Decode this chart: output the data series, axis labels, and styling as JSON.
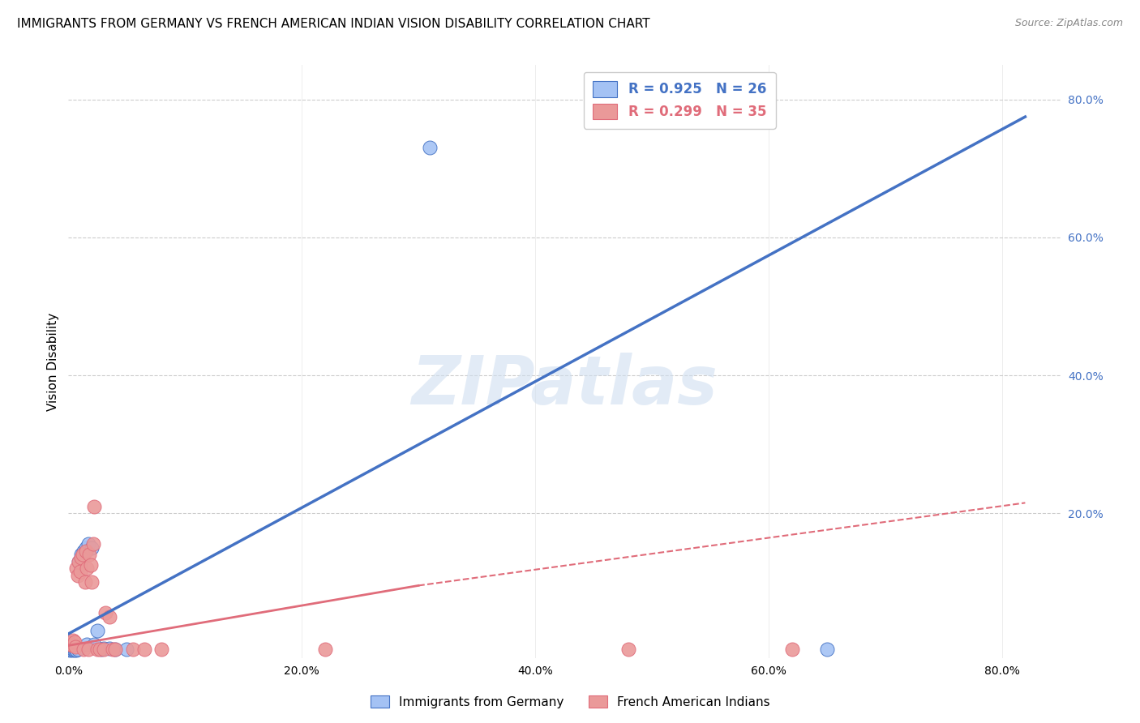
{
  "title": "IMMIGRANTS FROM GERMANY VS FRENCH AMERICAN INDIAN VISION DISABILITY CORRELATION CHART",
  "source": "Source: ZipAtlas.com",
  "ylabel": "Vision Disability",
  "xlim": [
    0.0,
    0.85
  ],
  "ylim": [
    -0.01,
    0.85
  ],
  "legend_labels_bottom": [
    "Immigrants from Germany",
    "French American Indians"
  ],
  "watermark": "ZIPatlas",
  "blue_scatter_x": [
    0.001,
    0.002,
    0.003,
    0.004,
    0.005,
    0.006,
    0.007,
    0.008,
    0.009,
    0.01,
    0.011,
    0.012,
    0.013,
    0.015,
    0.016,
    0.017,
    0.02,
    0.022,
    0.025,
    0.028,
    0.03,
    0.035,
    0.04,
    0.05,
    0.31,
    0.65
  ],
  "blue_scatter_y": [
    0.002,
    0.003,
    0.002,
    0.003,
    0.002,
    0.003,
    0.002,
    0.003,
    0.13,
    0.125,
    0.14,
    0.135,
    0.145,
    0.15,
    0.01,
    0.155,
    0.15,
    0.01,
    0.03,
    0.003,
    0.004,
    0.004,
    0.003,
    0.003,
    0.73,
    0.003
  ],
  "pink_scatter_x": [
    0.001,
    0.002,
    0.003,
    0.004,
    0.005,
    0.006,
    0.007,
    0.008,
    0.009,
    0.01,
    0.011,
    0.012,
    0.013,
    0.014,
    0.015,
    0.016,
    0.017,
    0.018,
    0.019,
    0.02,
    0.021,
    0.022,
    0.025,
    0.027,
    0.03,
    0.032,
    0.035,
    0.038,
    0.04,
    0.055,
    0.065,
    0.08,
    0.22,
    0.48,
    0.62
  ],
  "pink_scatter_y": [
    0.012,
    0.01,
    0.008,
    0.015,
    0.013,
    0.006,
    0.12,
    0.11,
    0.13,
    0.115,
    0.135,
    0.14,
    0.003,
    0.1,
    0.145,
    0.12,
    0.003,
    0.14,
    0.125,
    0.1,
    0.155,
    0.21,
    0.003,
    0.003,
    0.003,
    0.055,
    0.05,
    0.003,
    0.003,
    0.003,
    0.003,
    0.003,
    0.003,
    0.003,
    0.003
  ],
  "blue_line_x": [
    0.0,
    0.82
  ],
  "blue_line_y": [
    0.025,
    0.775
  ],
  "pink_solid_line_x": [
    0.0,
    0.3
  ],
  "pink_solid_line_y": [
    0.008,
    0.095
  ],
  "pink_dashed_line_x": [
    0.3,
    0.82
  ],
  "pink_dashed_line_y": [
    0.095,
    0.215
  ],
  "blue_color": "#4472c4",
  "blue_scatter_color": "#a4c2f4",
  "pink_color": "#e06c7a",
  "pink_scatter_color": "#ea9999",
  "background_color": "#ffffff",
  "grid_color": "#cccccc",
  "title_fontsize": 11,
  "axis_label_color": "#4472c4",
  "legend_r_n_blue": "R = 0.925   N = 26",
  "legend_r_n_pink": "R = 0.299   N = 35"
}
